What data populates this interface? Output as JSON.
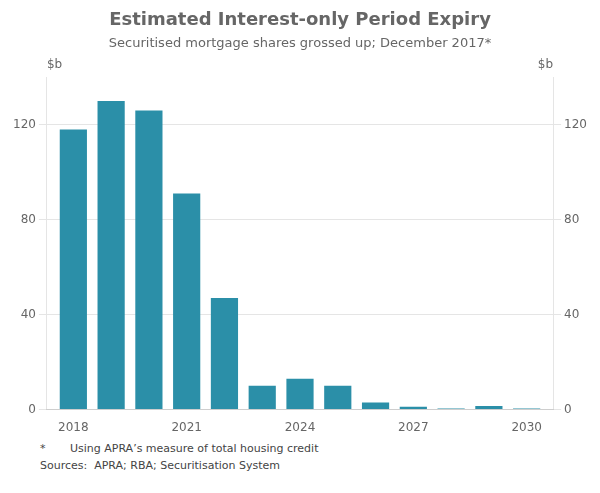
{
  "chart_data": {
    "type": "bar",
    "title": "Estimated Interest-only Period Expiry",
    "subtitle": "Securitised mortgage shares grossed up; December 2017*",
    "ylabel": "$b",
    "y2label": "$b",
    "footnotes": [
      "*       Using APRA’s measure of total housing credit",
      "Sources:  APRA; RBA; Securitisation System"
    ],
    "x": [
      2018,
      2019,
      2020,
      2021,
      2022,
      2023,
      2024,
      2025,
      2026,
      2027,
      2028,
      2029,
      2030
    ],
    "values": [
      118,
      130,
      126,
      91,
      47,
      10,
      13,
      10,
      3,
      1.2,
      0.5,
      1.5,
      0.5
    ],
    "color": "#2B8FA8",
    "xlim": [
      2017.3,
      2030.7
    ],
    "xticks": [
      2018,
      2021,
      2024,
      2027,
      2030
    ],
    "ylim": [
      0,
      140
    ],
    "yticks": [
      0,
      40,
      80,
      120
    ],
    "y2lim": [
      0,
      140
    ],
    "y2ticks": [
      0,
      40,
      80,
      120
    ],
    "grid": true
  }
}
